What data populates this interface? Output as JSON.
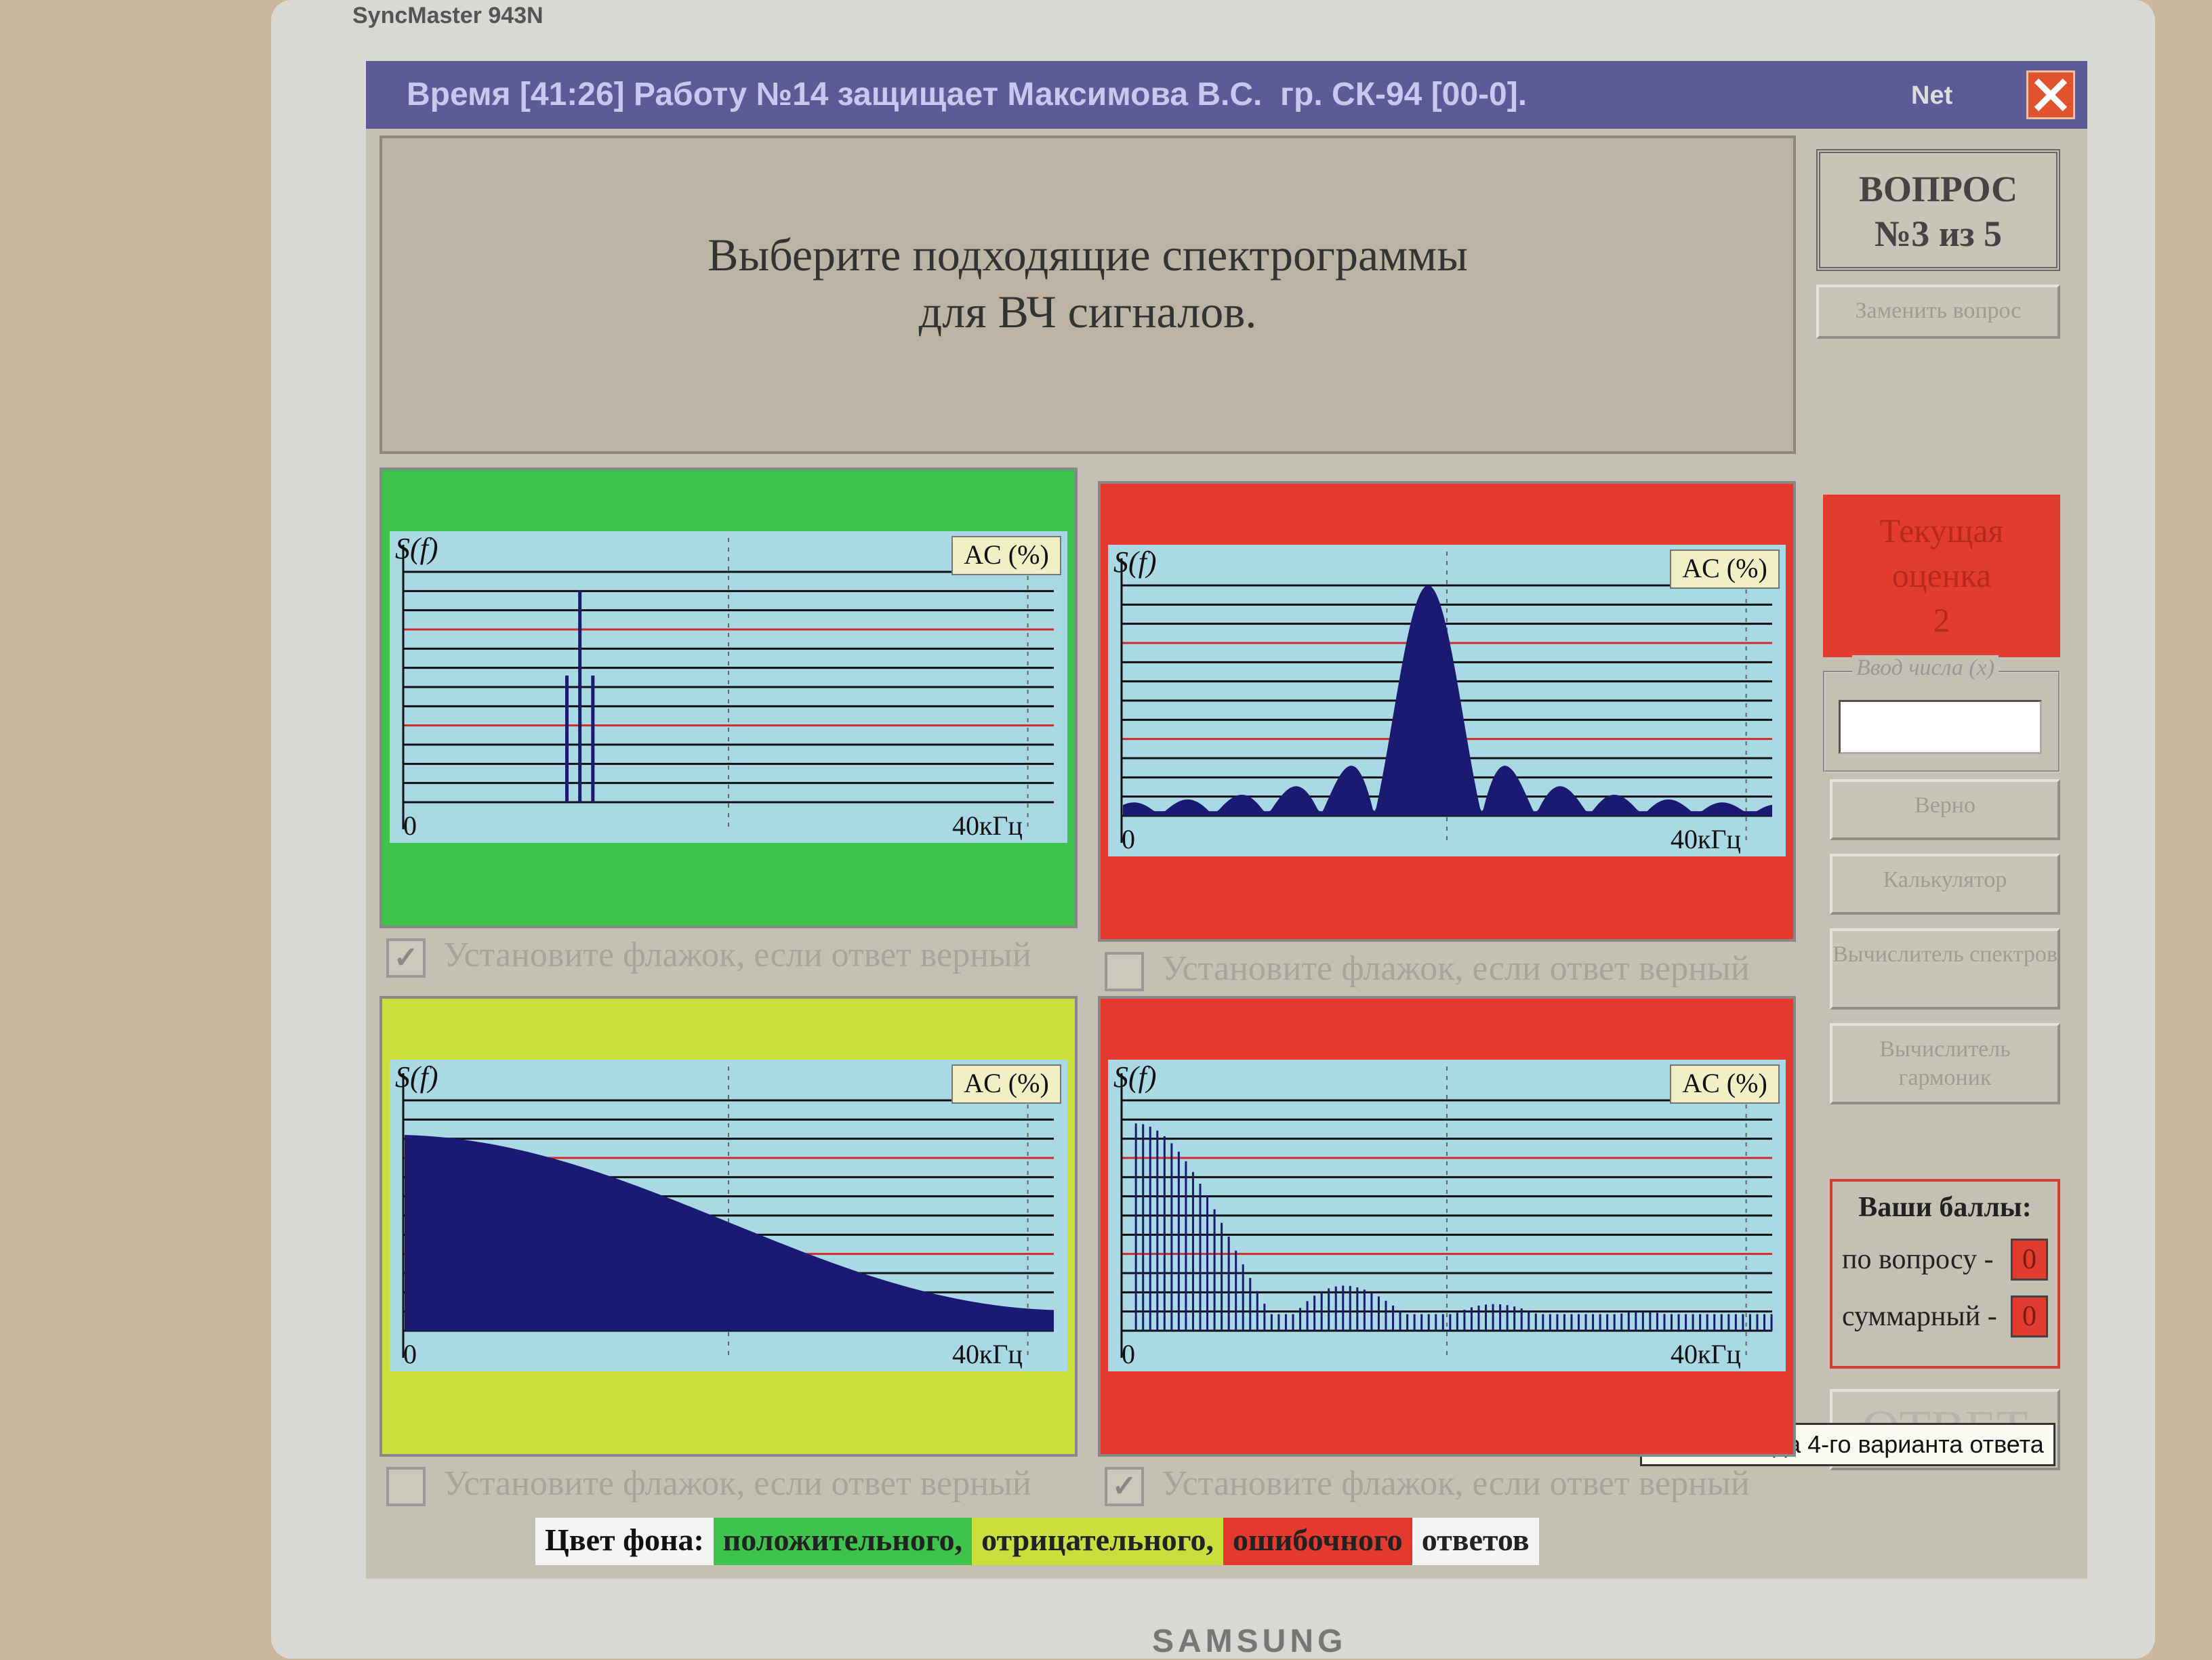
{
  "monitor": {
    "model": "SyncMaster 943N",
    "brand": "SAMSUNG"
  },
  "window": {
    "title": "Время [41:26] Работу №14 защищает Максимова В.С.  гр. СК-94 [00-0].",
    "status": "Net"
  },
  "question": {
    "lines": [
      "Выберите подходящие спектрограммы",
      "для ВЧ сигналов."
    ]
  },
  "sidebar": {
    "question_number": [
      "ВОПРОС",
      "№3 из 5"
    ],
    "replace_button": "Заменить вопрос",
    "grade": {
      "label": [
        "Текущая",
        "оценка"
      ],
      "value": 2
    },
    "input_label": "Ввод числа (x)",
    "buttons": [
      "Верно",
      "Калькулятор",
      "Вычислитель спектров",
      "Вычислитель гармоник"
    ],
    "score": {
      "title": "Ваши баллы:",
      "rows": [
        {
          "label": "по вопросу -",
          "value": 0
        },
        {
          "label": "суммарный -",
          "value": 0
        }
      ]
    },
    "answer_button": "ОТВЕТ"
  },
  "panels": [
    {
      "background": "#3ec44c",
      "y_label": "S(f)",
      "badge": "AC (%)",
      "x_start": "0",
      "x_end": "40кГц",
      "checkbox": "Установите флажок, если ответ верный",
      "checked": true
    },
    {
      "background": "#e43a2e",
      "y_label": "S(f)",
      "badge": "AC (%)",
      "x_start": "0",
      "x_end": "40кГц",
      "checkbox": "Установите флажок, если ответ верный",
      "checked": false
    },
    {
      "background": "#c9df3c",
      "y_label": "S(f)",
      "badge": "AC (%)",
      "x_start": "0",
      "x_end": "40кГц",
      "checkbox": "Установите флажок, если ответ верный",
      "checked": false
    },
    {
      "background": "#e43a2e",
      "y_label": "S(f)",
      "badge": "AC (%)",
      "x_start": "0",
      "x_end": "40кГц",
      "checkbox": "Установите флажок, если ответ верный",
      "checked": true
    }
  ],
  "tooltip": "Поле вывода 4-го варианта ответа",
  "legend": {
    "label": "Цвет фона:",
    "items": [
      {
        "text": "положительного,",
        "color": "#3ec44c"
      },
      {
        "text": "отрицательного,",
        "color": "#c9df3c"
      },
      {
        "text": "ошибочного",
        "color": "#e43a2e"
      },
      {
        "text": "ответов",
        "color": "#f4f4f4"
      }
    ]
  }
}
